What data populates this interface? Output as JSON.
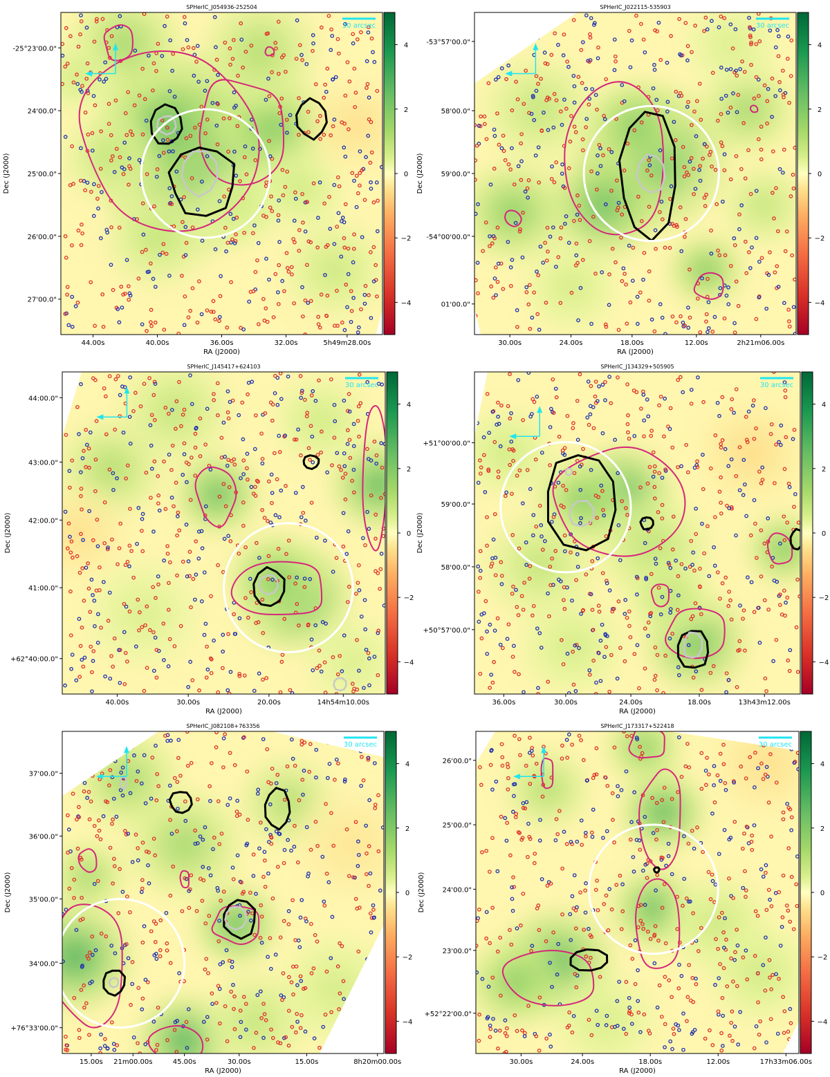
{
  "chart_data": [
    {
      "type": "heatmap",
      "title": "SPHerIC_J054936-252504",
      "xlabel": "RA (J2000)",
      "ylabel": "Dec (J2000)",
      "xticks": [
        "44.00s",
        "40.00s",
        "36.00s",
        "32.00s",
        "5h49m28.00s"
      ],
      "yticks": [
        "-25°23'00.0\"",
        "24'00.0\"",
        "25'00.0\"",
        "26'00.0\"",
        "27'00.0\""
      ],
      "colorbar": {
        "ticks": [
          "4",
          "2",
          "0",
          "−2",
          "−4"
        ],
        "range": [
          -5,
          5
        ]
      },
      "scalebar": "30 arcsec",
      "blobs": [
        [
          0.42,
          0.44,
          3.8,
          110
        ],
        [
          0.33,
          0.35,
          3.5,
          70
        ],
        [
          0.66,
          0.36,
          3,
          60
        ],
        [
          0.62,
          0.12,
          2.2,
          60
        ],
        [
          0.2,
          0.1,
          2.5,
          60
        ],
        [
          0.15,
          0.45,
          1.8,
          50
        ],
        [
          0.85,
          0.8,
          1.6,
          55
        ],
        [
          0.3,
          0.7,
          1.8,
          55
        ],
        [
          0.75,
          0.55,
          1.5,
          45
        ],
        [
          0.05,
          0.2,
          1.5,
          40
        ],
        [
          0.55,
          0.6,
          1.4,
          45
        ],
        [
          0.92,
          0.35,
          -1.2,
          50
        ]
      ]
    },
    {
      "type": "heatmap",
      "title": "SPHerIC_J022115-535903",
      "xlabel": "RA (J2000)",
      "ylabel": "Dec (J2000)",
      "xticks": [
        "30.00s",
        "24.00s",
        "18.00s",
        "12.00s",
        "2h21m06.00s"
      ],
      "yticks": [
        "-53°57'00.0\"",
        "58'00.0\"",
        "59'00.0\"",
        "-54°00'00.0\"",
        "01'00.0\""
      ],
      "colorbar": {
        "ticks": [
          "4",
          "2",
          "0",
          "−2",
          "−4"
        ],
        "range": [
          -5,
          5
        ]
      },
      "scalebar": "30 arcsec",
      "blobs": [
        [
          0.55,
          0.45,
          3.8,
          80
        ],
        [
          0.4,
          0.6,
          3.5,
          60
        ],
        [
          0.5,
          0.35,
          3,
          50
        ],
        [
          0.12,
          0.62,
          3,
          55
        ],
        [
          0.72,
          0.8,
          3.2,
          40
        ],
        [
          0.85,
          0.3,
          2.5,
          50
        ],
        [
          0.9,
          0.6,
          1.8,
          45
        ],
        [
          0.2,
          0.3,
          1.8,
          60
        ],
        [
          0.8,
          0.1,
          1.2,
          50
        ],
        [
          0.3,
          0.85,
          1.4,
          50
        ]
      ]
    },
    {
      "type": "heatmap",
      "title": "SPHerIC_J145417+624103",
      "xlabel": "RA (J2000)",
      "ylabel": "Dec (J2000)",
      "xticks": [
        "40.00s",
        "30.00s",
        "20.00s",
        "14h54m10.00s"
      ],
      "yticks": [
        "44:00.0\"",
        "43:00.0\"",
        "42:00.0\"",
        "41:00.0\"",
        "+62°40:00.0\""
      ],
      "colorbar": {
        "ticks": [
          "4",
          "2",
          "0",
          "−2",
          "−4"
        ],
        "range": [
          -5,
          5
        ]
      },
      "scalebar": "30 arcsec",
      "blobs": [
        [
          0.72,
          0.7,
          3.8,
          60
        ],
        [
          0.66,
          0.64,
          3,
          50
        ],
        [
          0.48,
          0.38,
          3.6,
          45
        ],
        [
          0.98,
          0.35,
          3.8,
          50
        ],
        [
          0.15,
          0.3,
          2.2,
          55
        ],
        [
          0.35,
          0.12,
          1.8,
          60
        ],
        [
          0.8,
          0.15,
          1.5,
          50
        ],
        [
          0.25,
          0.75,
          1.2,
          60
        ],
        [
          0.05,
          0.5,
          -1.2,
          50
        ],
        [
          0.9,
          0.9,
          1.2,
          50
        ]
      ]
    },
    {
      "type": "heatmap",
      "title": "SPHerIC_J134329+505905",
      "xlabel": "RA (J2000)",
      "ylabel": "Dec (J2000)",
      "xticks": [
        "36.00s",
        "30.00s",
        "24.00s",
        "18.00s",
        "13h43m12.00s"
      ],
      "yticks": [
        "+51°00'00.0\"",
        "59'00.0\"",
        "58'00.0\"",
        "+50°57'00.0\""
      ],
      "colorbar": {
        "ticks": [
          "4",
          "2",
          "0",
          "−2",
          "−4"
        ],
        "range": [
          -5,
          5
        ]
      },
      "scalebar": "30 arcsec",
      "blobs": [
        [
          0.45,
          0.38,
          4,
          55
        ],
        [
          0.33,
          0.4,
          3,
          50
        ],
        [
          0.68,
          0.84,
          3.4,
          55
        ],
        [
          0.95,
          0.55,
          3.2,
          40
        ],
        [
          0.55,
          0.55,
          2,
          60
        ],
        [
          0.2,
          0.6,
          1.8,
          60
        ],
        [
          0.6,
          0.7,
          2,
          45
        ],
        [
          0.1,
          0.25,
          1.5,
          50
        ],
        [
          0.85,
          0.25,
          -1.3,
          55
        ],
        [
          0.3,
          0.85,
          1.4,
          55
        ]
      ]
    },
    {
      "type": "heatmap",
      "title": "SPHerIC_J082108+763356",
      "xlabel": "RA (J2000)",
      "ylabel": "Dec (J2000)",
      "xticks": [
        "15.00s",
        "21m00.00s",
        "45.00s",
        "30.00s",
        "15.00s",
        "8h20m00.00s"
      ],
      "yticks": [
        "37'00.0\"",
        "36'00.0\"",
        "35'00.0\"",
        "34'00.0\"",
        "+76°33'00.0\""
      ],
      "colorbar": {
        "ticks": [
          "4",
          "2",
          "0",
          "−2",
          "−4"
        ],
        "range": [
          -5,
          5
        ]
      },
      "scalebar": "30 arcsec",
      "blobs": [
        [
          0.04,
          0.7,
          4,
          60
        ],
        [
          0.38,
          0.96,
          4,
          50
        ],
        [
          0.54,
          0.6,
          3.6,
          45
        ],
        [
          0.38,
          0.35,
          2.5,
          60
        ],
        [
          0.2,
          0.15,
          2.5,
          55
        ],
        [
          0.08,
          0.45,
          2.5,
          40
        ],
        [
          0.7,
          0.22,
          2.2,
          50
        ],
        [
          0.6,
          0.9,
          1.8,
          55
        ],
        [
          0.85,
          0.8,
          1.4,
          60
        ],
        [
          0.9,
          0.35,
          -1,
          60
        ]
      ]
    },
    {
      "type": "heatmap",
      "title": "SPHerIC_J173317+522418",
      "xlabel": "RA (J2000)",
      "ylabel": "Dec (J2000)",
      "xticks": [
        "30.00s",
        "24.00s",
        "18.00s",
        "12.00s",
        "17h33m06.00s"
      ],
      "yticks": [
        "26'00.0\"",
        "25'00.0\"",
        "24'00.0\"",
        "23'00.0\"",
        "+52°22'00.0\""
      ],
      "colorbar": {
        "ticks": [
          "4",
          "2",
          "0",
          "−2",
          "−4"
        ],
        "range": [
          -5,
          5
        ]
      },
      "scalebar": "30 arcsec",
      "blobs": [
        [
          0.58,
          0.25,
          3.8,
          45
        ],
        [
          0.55,
          0.55,
          3.6,
          45
        ],
        [
          0.25,
          0.72,
          3.8,
          60
        ],
        [
          0.12,
          0.78,
          3,
          50
        ],
        [
          0.52,
          0.05,
          3,
          40
        ],
        [
          0.22,
          0.18,
          2.2,
          45
        ],
        [
          0.75,
          0.6,
          1.6,
          55
        ],
        [
          0.88,
          0.75,
          1.5,
          55
        ],
        [
          0.9,
          0.1,
          -1.2,
          55
        ],
        [
          0.4,
          0.9,
          1.3,
          55
        ]
      ]
    }
  ]
}
